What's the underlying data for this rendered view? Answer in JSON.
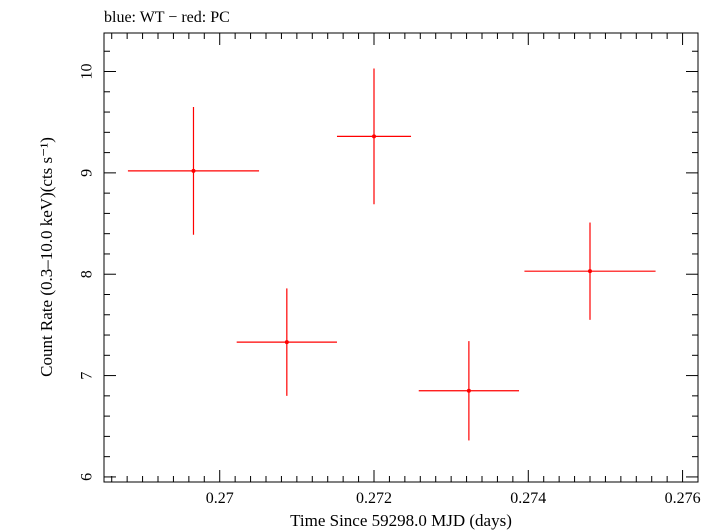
{
  "header": {
    "title": "blue: WT − red: PC"
  },
  "chart_data": {
    "type": "scatter",
    "title": "blue: WT − red: PC",
    "xlabel": "Time Since 59298.0 MJD (days)",
    "ylabel": "Count Rate (0.3–10.0 keV)(cts s⁻¹)",
    "xlim": [
      0.2685,
      0.2762
    ],
    "ylim": [
      5.95,
      10.38
    ],
    "x_ticks": [
      0.27,
      0.272,
      0.274,
      0.276
    ],
    "x_tick_labels": [
      "0.27",
      "0.272",
      "0.274",
      "0.276"
    ],
    "y_ticks": [
      6,
      7,
      8,
      9,
      10
    ],
    "y_tick_labels": [
      "6",
      "7",
      "8",
      "9",
      "10"
    ],
    "grid": false,
    "series": [
      {
        "color": "#ff0000",
        "points": [
          {
            "x": 0.26966,
            "xerr": 0.00085,
            "y": 9.02,
            "yerr": 0.63
          },
          {
            "x": 0.27087,
            "xerr": 0.00065,
            "y": 7.33,
            "yerr": 0.53
          },
          {
            "x": 0.272,
            "xerr": 0.00048,
            "y": 9.36,
            "yerr": 0.67
          },
          {
            "x": 0.27323,
            "xerr": 0.00065,
            "y": 6.85,
            "yerr": 0.49
          },
          {
            "x": 0.2748,
            "xerr": 0.00085,
            "y": 8.03,
            "yerr": 0.48
          }
        ]
      }
    ]
  }
}
